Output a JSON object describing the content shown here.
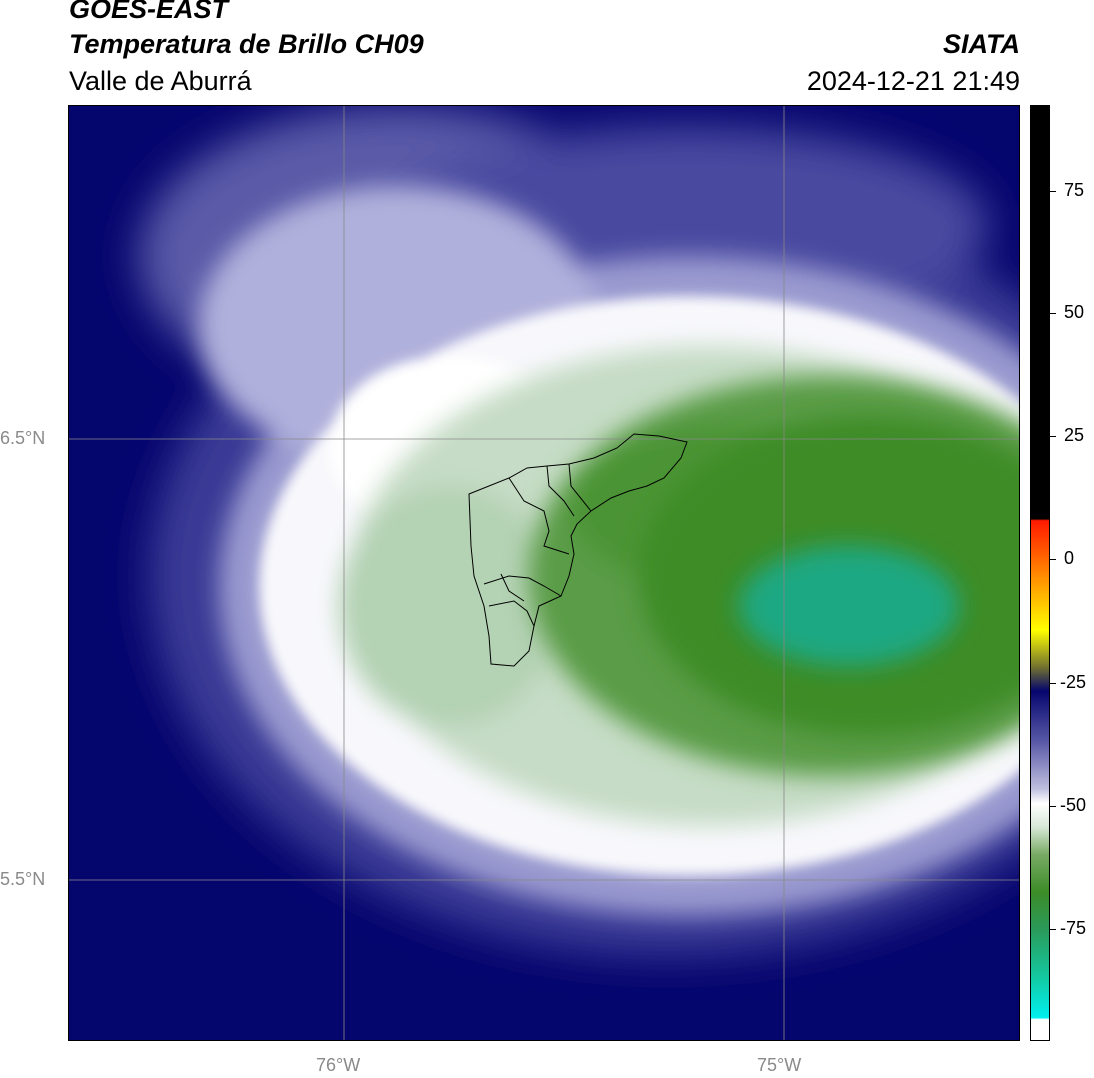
{
  "header": {
    "satellite": "GOES-EAST",
    "product": "Temperatura de Brillo CH09",
    "region": "Valle de Aburrá",
    "organization": "SIATA",
    "datetime": "2024-12-21 21:49"
  },
  "map": {
    "lat_labels": [
      "6.5°N",
      "5.5°N"
    ],
    "lon_labels": [
      "76°W",
      "75°W"
    ]
  },
  "colorbar": {
    "tick_labels": [
      "75",
      "50",
      "25",
      "0",
      "-25",
      "-50",
      "-75"
    ],
    "colors": {
      "black": "#000000",
      "red": "#ff1a00",
      "orange": "#ff8c00",
      "yellow": "#ffff00",
      "navy": "#05056e",
      "lavender": "#8c8cc8",
      "white": "#ffffff",
      "light_green": "#b4d2b4",
      "green": "#3c8c28",
      "teal": "#14c8a0",
      "cyan": "#00f0f0"
    }
  }
}
